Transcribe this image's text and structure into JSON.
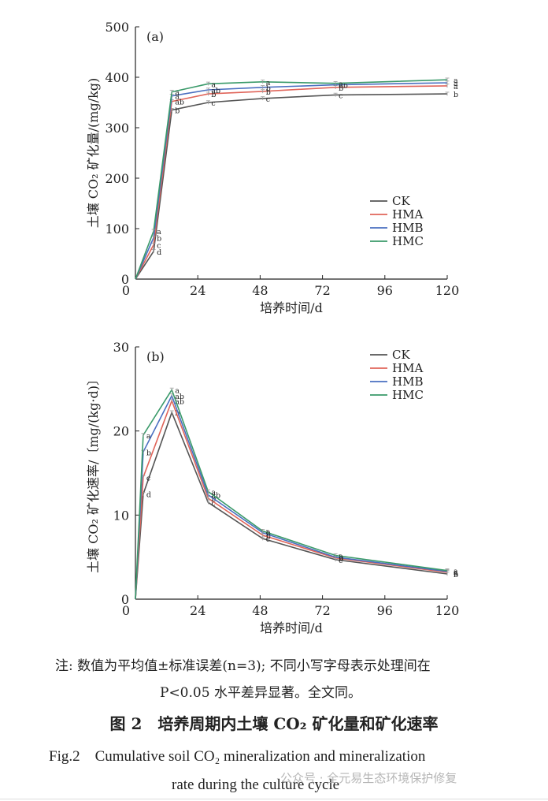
{
  "chart_data": [
    {
      "type": "line",
      "panel_label": "(a)",
      "xlabel": "培养时间/d",
      "ylabel": "土壤 CO₂ 矿化量/(mg/kg)",
      "xlim": [
        0,
        120
      ],
      "ylim": [
        0,
        500
      ],
      "xticks": [
        0,
        24,
        48,
        72,
        96,
        120
      ],
      "yticks": [
        0,
        100,
        200,
        300,
        400,
        500
      ],
      "legend_position": "lower-right",
      "x": [
        0,
        7,
        14,
        28,
        49,
        77,
        120
      ],
      "series": [
        {
          "name": "CK",
          "color": "#555555",
          "values": [
            0,
            55,
            335,
            350,
            358,
            365,
            367
          ],
          "letters": [
            "",
            "d",
            "b",
            "c",
            "c",
            "c",
            "b"
          ]
        },
        {
          "name": "HMA",
          "color": "#e0655a",
          "values": [
            0,
            68,
            352,
            367,
            372,
            380,
            383
          ],
          "letters": [
            "",
            "c",
            "ab",
            "b",
            "b",
            "b",
            "a"
          ]
        },
        {
          "name": "HMB",
          "color": "#4a6fc0",
          "values": [
            0,
            82,
            363,
            375,
            380,
            385,
            389
          ],
          "letters": [
            "",
            "b",
            "a",
            "ab",
            "b",
            "ab",
            "a"
          ]
        },
        {
          "name": "HMC",
          "color": "#3a9a6a",
          "values": [
            0,
            95,
            371,
            387,
            391,
            388,
            395
          ],
          "letters": [
            "",
            "a",
            "a",
            "a",
            "a",
            "a",
            "a"
          ]
        }
      ]
    },
    {
      "type": "line",
      "panel_label": "(b)",
      "xlabel": "培养时间/d",
      "ylabel": "土壤 CO₂ 矿化速率/〔mg/(kg·d)〕",
      "xlim": [
        0,
        120
      ],
      "ylim": [
        0,
        30
      ],
      "xticks": [
        0,
        24,
        48,
        72,
        96,
        120
      ],
      "yticks": [
        0,
        10,
        20,
        30
      ],
      "legend_position": "top-right",
      "x": [
        0,
        3,
        14,
        28,
        49,
        77,
        120
      ],
      "series": [
        {
          "name": "CK",
          "color": "#555555",
          "values": [
            0,
            12.5,
            22.2,
            11.5,
            7.2,
            4.7,
            3.0
          ],
          "letters": [
            "",
            "d",
            "b",
            "c",
            "c",
            "c",
            "b"
          ]
        },
        {
          "name": "HMA",
          "color": "#e0655a",
          "values": [
            0,
            14.5,
            23.6,
            12.0,
            7.6,
            4.9,
            3.2
          ],
          "letters": [
            "",
            "c",
            "ab",
            "b",
            "b",
            "b",
            "a"
          ]
        },
        {
          "name": "HMB",
          "color": "#4a6fc0",
          "values": [
            0,
            17.5,
            24.2,
            12.4,
            7.9,
            5.0,
            3.3
          ],
          "letters": [
            "",
            "b",
            "ab",
            "ab",
            "b",
            "b",
            "a"
          ]
        },
        {
          "name": "HMC",
          "color": "#3a9a6a",
          "values": [
            0,
            19.5,
            24.9,
            12.8,
            8.1,
            5.2,
            3.4
          ],
          "letters": [
            "",
            "a",
            "a",
            "a",
            "a",
            "a",
            "a"
          ]
        }
      ]
    }
  ],
  "caption": {
    "note_line1": "注: 数值为平均值±标准误差(n=3); 不同小写字母表示处理间在",
    "note_line2": "P<0.05 水平差异显著。全文同。",
    "title_cn": "图 2　培养周期内土壤 CO₂ 矿化量和矿化速率",
    "title_en_line1": "Fig.2　Cumulative soil CO₂ mineralization and mineralization",
    "title_en_line2": "rate during the culture cycle",
    "watermark": "公众号 · 全元易生态环境保护修复"
  }
}
